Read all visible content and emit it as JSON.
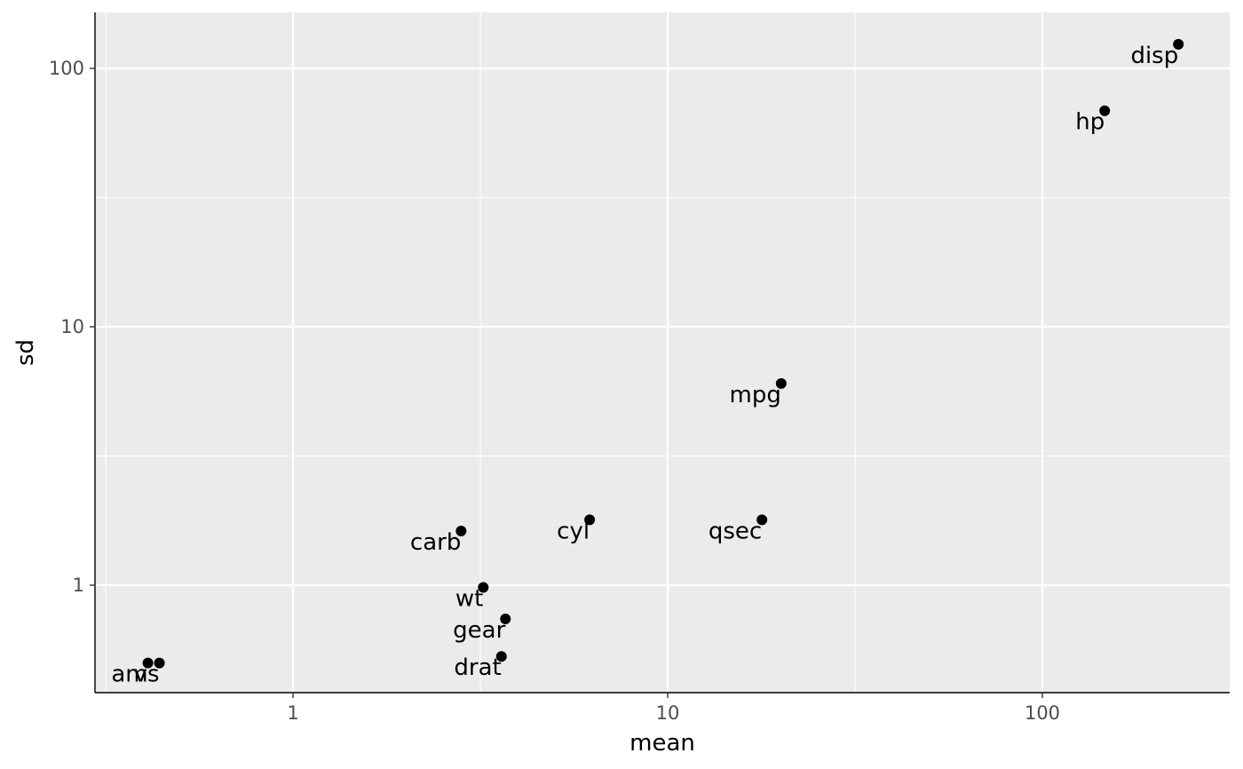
{
  "chart_data": {
    "type": "scatter",
    "title": "",
    "xlabel": "mean",
    "ylabel": "sd",
    "x_scale": "log10",
    "y_scale": "log10",
    "xlim": [
      0.28,
      300
    ],
    "ylim": [
      0.42,
      160
    ],
    "x_ticks": [
      1,
      10,
      100
    ],
    "x_tick_labels": [
      "1",
      "10",
      "100"
    ],
    "y_ticks": [
      1,
      10,
      100
    ],
    "y_tick_labels": [
      "1",
      "10",
      "100"
    ],
    "grid": true,
    "legend": "none",
    "colors": {
      "panel": "#ebebeb",
      "grid": "#ffffff",
      "point": "#000000"
    },
    "points": [
      {
        "label": "mpg",
        "x": 20.09,
        "y": 6.03
      },
      {
        "label": "cyl",
        "x": 6.19,
        "y": 1.79
      },
      {
        "label": "disp",
        "x": 230.72,
        "y": 123.94
      },
      {
        "label": "hp",
        "x": 146.69,
        "y": 68.56
      },
      {
        "label": "drat",
        "x": 3.6,
        "y": 0.53
      },
      {
        "label": "wt",
        "x": 3.22,
        "y": 0.98
      },
      {
        "label": "qsec",
        "x": 17.85,
        "y": 1.79
      },
      {
        "label": "vs",
        "x": 0.44,
        "y": 0.5
      },
      {
        "label": "am",
        "x": 0.41,
        "y": 0.5
      },
      {
        "label": "gear",
        "x": 3.69,
        "y": 0.74
      },
      {
        "label": "carb",
        "x": 2.81,
        "y": 1.62
      }
    ]
  }
}
